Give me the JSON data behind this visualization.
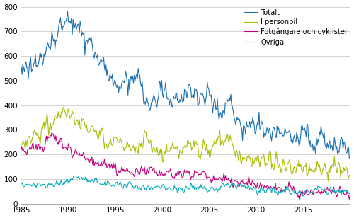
{
  "xlim": [
    1985.0,
    2020.0
  ],
  "ylim": [
    0,
    800
  ],
  "yticks": [
    0,
    100,
    200,
    300,
    400,
    500,
    600,
    700,
    800
  ],
  "xticks": [
    1985,
    1990,
    1995,
    2000,
    2005,
    2010,
    2015
  ],
  "legend_labels": [
    "Totalt",
    "I personbil",
    "Fotgängare och cyklister",
    "Övriga"
  ],
  "colors": [
    "#1a6faf",
    "#aabc00",
    "#c0007a",
    "#00aabc"
  ],
  "background_color": "#ffffff",
  "grid_color": "#cccccc",
  "linewidth": 0.8
}
